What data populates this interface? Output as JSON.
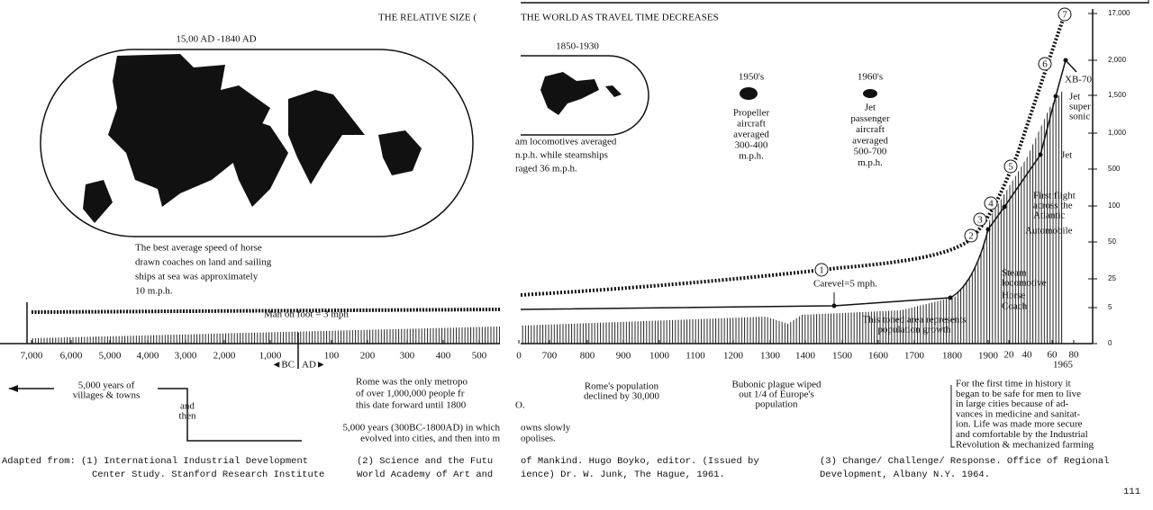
{
  "title": {
    "left": "THE RELATIVE SIZE (",
    "right": "THE WORLD AS TRAVEL TIME DECREASES"
  },
  "maps": [
    {
      "period": "15,00 AD -1840 AD"
    },
    {
      "period": "1850-1930"
    }
  ],
  "notes": {
    "horse": [
      "The best average speed of horse",
      "drawn coaches on land and sailing",
      "ships at sea was approximately",
      "10 m.p.h."
    ],
    "steam": [
      "am locomotives averaged",
      "n.p.h. while steamships",
      "raged 36 m.p.h."
    ],
    "propeller": {
      "era": "1950's",
      "lines": [
        "Propeller",
        "aircraft",
        "averaged",
        "300-400",
        "m.p.h."
      ]
    },
    "jet": {
      "era": "1960's",
      "lines": [
        "Jet",
        "passenger",
        "aircraft",
        "averaged",
        "500-700",
        "m.p.h."
      ]
    }
  },
  "chart": {
    "milestones": [
      "1",
      "2",
      "3",
      "4",
      "5",
      "6",
      "7"
    ],
    "labels": {
      "xb70": "XB-70",
      "supersonic": [
        "Jet",
        "super",
        "sonic"
      ],
      "jet": "Jet",
      "atlantic": [
        "First flight",
        "across the",
        "Atlantic"
      ],
      "automobile": "Automobile",
      "steam": [
        "Steam",
        "locomotive"
      ],
      "horse": [
        "Horse",
        "Coach"
      ],
      "caravel": "Carevel=5 mph.",
      "foot": "Man on foot = 3 mph",
      "toned": [
        "This toned area represents",
        "population growth"
      ]
    },
    "x_axis": {
      "labels": [
        "7,000",
        "6,000",
        "5,000",
        "4,000",
        "3,000",
        "2,000",
        "1,000",
        "100",
        "200",
        "300",
        "400",
        "500",
        "0",
        "700",
        "800",
        "900",
        "1000",
        "1100",
        "1200",
        "1300",
        "1400",
        "1500",
        "1600",
        "1700",
        "1800",
        "1900",
        "20",
        "40",
        "60",
        "80"
      ],
      "bc": "◄BC",
      "ad": "AD►",
      "year": "1965"
    },
    "y_axis": {
      "labels": [
        "17,000",
        "2,000",
        "1,500",
        "1,000",
        "500",
        "100",
        "50",
        "25",
        "5",
        "0"
      ]
    }
  },
  "captions": {
    "villages": [
      "5,000 years of",
      "villages & towns"
    ],
    "and_then": [
      "and",
      "then"
    ],
    "cities_left": [
      "5,000 years (300BC-1800AD) in which",
      "evolved into cities, and then into m"
    ],
    "cities_right": [
      "owns slowly",
      "opolises."
    ],
    "rome": [
      "Rome was the only metropo",
      "of over 1,000,000 people fr",
      "this date forward until 1800"
    ],
    "rome_end": "O.",
    "rome_decline": [
      "Rome's population",
      "declined by 30,000"
    ],
    "plague": [
      "Bubonic plague wiped",
      "out 1/4 of Europe's",
      "population"
    ],
    "safety": [
      "For the first time in history it",
      "began to be safe for men to live",
      "in large cities because of ad-",
      "vances in medicine and sanitat-",
      "ion. Life was made more secure",
      "and comfortable by the Industrial",
      "Revolution & mechanized farming"
    ]
  },
  "footer": {
    "adapted": "Adapted from:",
    "sources": [
      [
        "(1)  International Industrial Development",
        "Center Study.  Stanford Research Institute"
      ],
      [
        "(2)  Science and the Futu",
        "World Academy of Art and"
      ],
      [
        "of Mankind.  Hugo Boyko, editor.  (Issued by",
        "ience)  Dr. W. Junk,  The Hague, 1961."
      ],
      [
        "(3)  Change/ Challenge/ Response.  Office of Regional",
        "Development, Albany N.Y.  1964."
      ]
    ]
  },
  "page_number": "111"
}
